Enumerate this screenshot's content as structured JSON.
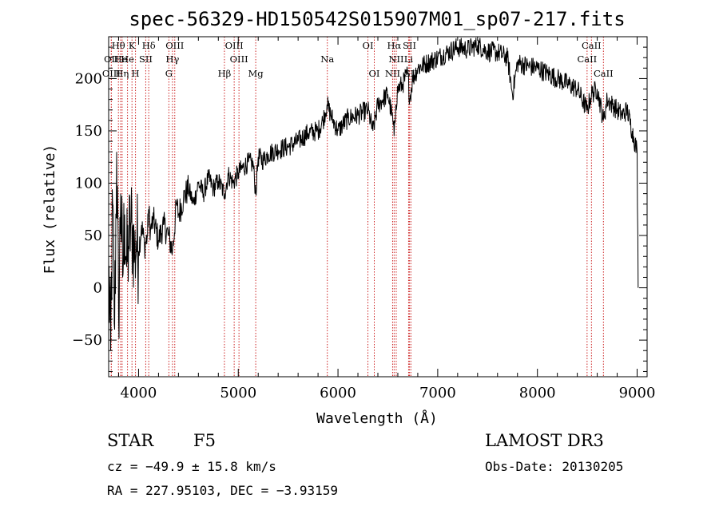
{
  "chart_data": {
    "type": "line",
    "title": "spec-56329-HD150542S015907M01_sp07-217.fits",
    "xlabel": "Wavelength (Å)",
    "ylabel": "Flux (relative)",
    "xlim": [
      3700,
      9100
    ],
    "ylim": [
      -85,
      240
    ],
    "xticks": [
      {
        "value": 4000,
        "label": "4000"
      },
      {
        "value": 5000,
        "label": "5000"
      },
      {
        "value": 6000,
        "label": "6000"
      },
      {
        "value": 7000,
        "label": "7000"
      },
      {
        "value": 8000,
        "label": "8000"
      },
      {
        "value": 9000,
        "label": "9000"
      }
    ],
    "yticks": [
      {
        "value": -50,
        "label": "−50"
      },
      {
        "value": 0,
        "label": "0"
      },
      {
        "value": 50,
        "label": "50"
      },
      {
        "value": 100,
        "label": "100"
      },
      {
        "value": 150,
        "label": "150"
      },
      {
        "value": 200,
        "label": "200"
      }
    ],
    "series": [
      {
        "name": "flux",
        "x": [
          3700,
          3720,
          3740,
          3760,
          3780,
          3800,
          3820,
          3840,
          3860,
          3880,
          3900,
          3920,
          3940,
          3960,
          3980,
          4000,
          4030,
          4060,
          4090,
          4100,
          4120,
          4150,
          4200,
          4250,
          4300,
          4340,
          4380,
          4400,
          4450,
          4500,
          4550,
          4600,
          4650,
          4700,
          4750,
          4800,
          4861,
          4900,
          4950,
          5000,
          5050,
          5100,
          5150,
          5175,
          5200,
          5250,
          5300,
          5400,
          5500,
          5600,
          5700,
          5800,
          5850,
          5890,
          5950,
          6000,
          6100,
          6200,
          6300,
          6350,
          6400,
          6450,
          6500,
          6550,
          6563,
          6580,
          6600,
          6650,
          6700,
          6720,
          6750,
          6800,
          6900,
          7000,
          7100,
          7200,
          7300,
          7400,
          7500,
          7600,
          7700,
          7750,
          7800,
          7900,
          8000,
          8100,
          8200,
          8300,
          8400,
          8498,
          8542,
          8600,
          8662,
          8700,
          8750,
          8800,
          8850,
          8900,
          8950,
          9000,
          9010
        ],
        "values": [
          20,
          -60,
          80,
          -40,
          130,
          -30,
          90,
          10,
          70,
          20,
          40,
          60,
          55,
          30,
          45,
          35,
          60,
          40,
          50,
          75,
          55,
          65,
          45,
          60,
          50,
          35,
          80,
          70,
          85,
          95,
          80,
          100,
          90,
          105,
          95,
          102,
          90,
          108,
          100,
          110,
          115,
          120,
          118,
          90,
          125,
          122,
          128,
          132,
          135,
          140,
          148,
          150,
          160,
          175,
          160,
          150,
          162,
          165,
          170,
          150,
          175,
          180,
          185,
          160,
          145,
          175,
          190,
          195,
          205,
          180,
          200,
          210,
          215,
          220,
          225,
          230,
          228,
          232,
          226,
          225,
          220,
          185,
          215,
          212,
          210,
          205,
          200,
          195,
          190,
          170,
          185,
          190,
          160,
          180,
          175,
          170,
          165,
          170,
          150,
          130,
          0
        ]
      }
    ],
    "spectral_lines": [
      {
        "label": "Hθ",
        "wavelength": 3798,
        "row": 0
      },
      {
        "label": "K",
        "wavelength": 3934,
        "row": 0
      },
      {
        "label": "Hδ",
        "wavelength": 4102,
        "row": 0
      },
      {
        "label": "OIII",
        "wavelength": 4363,
        "row": 0
      },
      {
        "label": "OIII",
        "wavelength": 4959,
        "row": 0
      },
      {
        "label": "OI",
        "wavelength": 6300,
        "row": 0
      },
      {
        "label": "Hα",
        "wavelength": 6563,
        "row": 0
      },
      {
        "label": "SII",
        "wavelength": 6717,
        "row": 0
      },
      {
        "label": "CaII",
        "wavelength": 8542,
        "row": 0
      },
      {
        "label": "OII",
        "wavelength": 3727,
        "row": 1
      },
      {
        "label": "He",
        "wavelength": 3820,
        "row": 1
      },
      {
        "label": "He",
        "wavelength": 3889,
        "row": 1
      },
      {
        "label": "SII",
        "wavelength": 4072,
        "row": 1
      },
      {
        "label": "Hγ",
        "wavelength": 4340,
        "row": 1
      },
      {
        "label": "OIII",
        "wavelength": 5007,
        "row": 1
      },
      {
        "label": "Na",
        "wavelength": 5893,
        "row": 1
      },
      {
        "label": "NII",
        "wavelength": 6584,
        "row": 1
      },
      {
        "label": "Li",
        "wavelength": 6708,
        "row": 1
      },
      {
        "label": "CaII",
        "wavelength": 8498,
        "row": 1
      },
      {
        "label": "OIII",
        "wavelength": 3727,
        "row": 2
      },
      {
        "label": "Hη",
        "wavelength": 3835,
        "row": 2
      },
      {
        "label": "H",
        "wavelength": 3969,
        "row": 2
      },
      {
        "label": "G",
        "wavelength": 4304,
        "row": 2
      },
      {
        "label": "Hβ",
        "wavelength": 4861,
        "row": 2
      },
      {
        "label": "Mg",
        "wavelength": 5175,
        "row": 2
      },
      {
        "label": "OI",
        "wavelength": 6364,
        "row": 2
      },
      {
        "label": "NII",
        "wavelength": 6548,
        "row": 2
      },
      {
        "label": "SII",
        "wavelength": 6731,
        "row": 2
      },
      {
        "label": "CaII",
        "wavelength": 8662,
        "row": 2
      }
    ]
  },
  "info": {
    "class": "STAR",
    "subclass": "F5",
    "survey": "LAMOST DR3",
    "redshift": "cz = −49.9 ± 15.8 km/s",
    "obs_date": "Obs-Date: 20130205",
    "coords": "RA = 227.95103, DEC =  −3.93159"
  },
  "colors": {
    "line_marker": "#cc2222",
    "spectrum": "#000000"
  }
}
